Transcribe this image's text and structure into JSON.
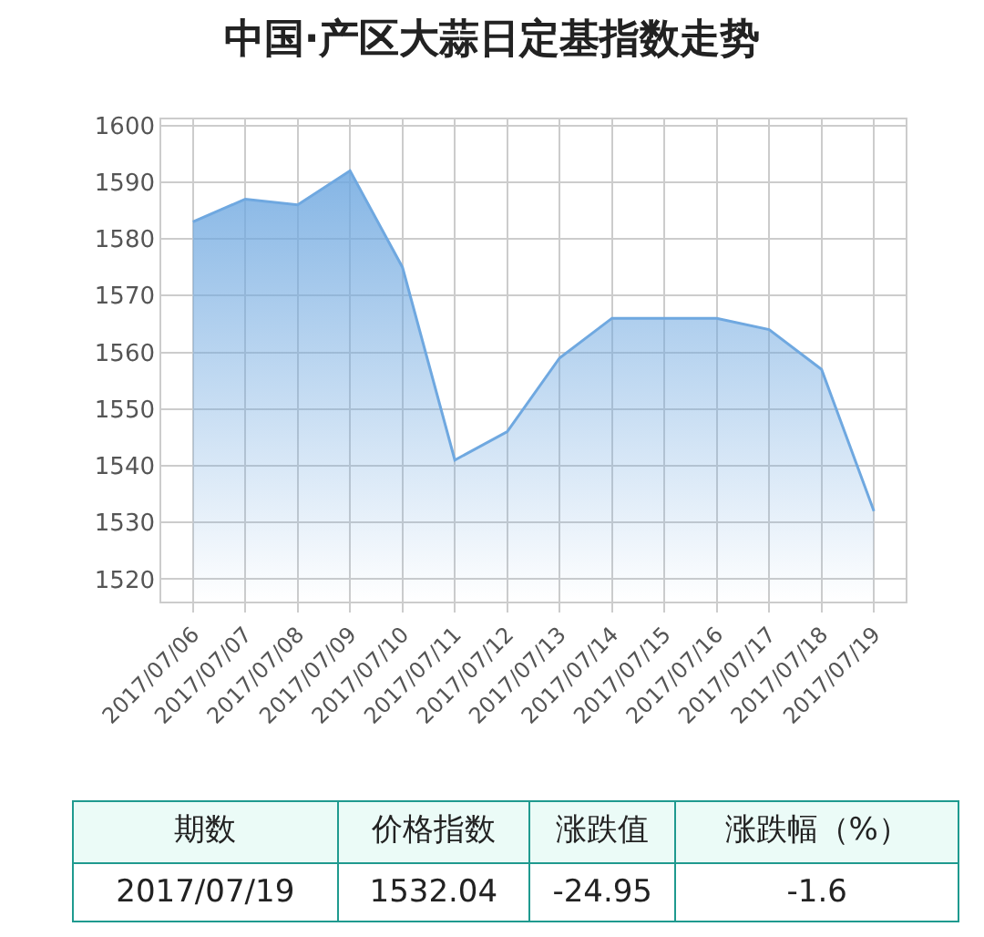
{
  "chart_data": [
    {
      "type": "area",
      "title": "中国·产区大蒜日定基指数走势",
      "categories": [
        "2017/07/06",
        "2017/07/07",
        "2017/07/08",
        "2017/07/09",
        "2017/07/10",
        "2017/07/11",
        "2017/07/12",
        "2017/07/13",
        "2017/07/14",
        "2017/07/15",
        "2017/07/16",
        "2017/07/17",
        "2017/07/18",
        "2017/07/19"
      ],
      "series": [
        {
          "color": "#6fa8e0",
          "values": [
            1583,
            1587,
            1586,
            1592,
            1575,
            1541,
            1546,
            1559,
            1566,
            1566,
            1566,
            1564,
            1557,
            1532
          ]
        }
      ],
      "ylim": [
        1516,
        1601
      ],
      "yticks": [
        1520,
        1530,
        1540,
        1550,
        1560,
        1570,
        1580,
        1590,
        1600
      ],
      "grid": true,
      "marker": "none",
      "line_style": "solid"
    },
    {
      "type": "other",
      "annotations": [
        "期数",
        "价格指数",
        "涨跌值",
        "涨跌幅（%）",
        "2017/07/19",
        "1532.04",
        "-24.95",
        "-1.6"
      ]
    }
  ]
}
